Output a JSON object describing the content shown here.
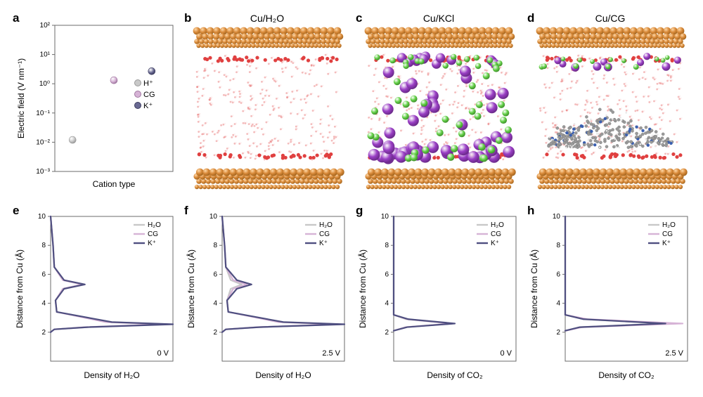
{
  "labels": {
    "a": "a",
    "b": "b",
    "c": "c",
    "d": "d",
    "e": "e",
    "f": "f",
    "g": "g",
    "h": "h"
  },
  "panel_a": {
    "type": "scatter",
    "xlabel": "Cation type",
    "ylabel": "Electric field (V nm⁻¹)",
    "ylim": [
      0.001,
      100
    ],
    "yticks": [
      "10⁻³",
      "10⁻²",
      "10⁻¹",
      "10⁰",
      "10¹",
      "10²"
    ],
    "yscale": "log",
    "plot_bg": "#ffffff",
    "axis_color": "#6b6b6b",
    "text_color": "#000000",
    "legend_fontsize": 11,
    "axis_fontsize": 12,
    "tick_fontsize": 10,
    "marker_radius": 5,
    "points": [
      {
        "name": "H⁺",
        "x": 0.15,
        "y_exp": -1.92,
        "color": "#c9c9c9",
        "stroke": "#9a9a9a",
        "err": 0
      },
      {
        "name": "CG",
        "x": 0.5,
        "y_exp": 0.12,
        "color": "#d6b3d6",
        "stroke": "#a077a0",
        "err": 0.02
      },
      {
        "name": "K⁺",
        "x": 0.82,
        "y_exp": 0.43,
        "color": "#6a6a93",
        "stroke": "#3d3d60",
        "err": 0
      }
    ]
  },
  "sim_panels": {
    "copper_color": "#d98a3a",
    "copper_edge": "#a6671f",
    "water_o": "#e04040",
    "water_h": "#ffffff",
    "water_alpha": 0.35,
    "bg": "#ffffff",
    "b": {
      "title": "Cu/H₂O",
      "extras": []
    },
    "c": {
      "title": "Cu/KCl",
      "extras": [
        {
          "kind": "K",
          "color": "#9a3fc5",
          "stroke": "#6b2a8a",
          "r": 8,
          "count_top": 14,
          "count_mid": 22,
          "count_bot": 26
        },
        {
          "kind": "Cl",
          "color": "#66d24a",
          "stroke": "#3f8f2b",
          "r": 5,
          "count_top": 16,
          "count_mid": 24,
          "count_bot": 10
        }
      ]
    },
    "d": {
      "title": "Cu/CG",
      "extras": [
        {
          "kind": "K",
          "color": "#9a3fc5",
          "stroke": "#6b2a8a",
          "r": 6,
          "count_top": 6,
          "count_mid": 4,
          "count_bot": 0
        },
        {
          "kind": "Cl",
          "color": "#66d24a",
          "stroke": "#3f8f2b",
          "r": 4,
          "count_top": 8,
          "count_mid": 5,
          "count_bot": 0
        }
      ],
      "polymer": {
        "c": "#9a9a9a",
        "n": "#3a5fb0",
        "h": "#e8e8e8"
      }
    }
  },
  "profiles_common": {
    "type": "line",
    "xlabel_h2o": "Density of H₂O",
    "xlabel_co2": "Density of CO₂",
    "ylabel": "Distance from Cu (Å)",
    "ylim": [
      0,
      10
    ],
    "yticks": [
      2,
      4,
      6,
      8,
      10
    ],
    "xlim": [
      0,
      1
    ],
    "axis_color": "#6b6b6b",
    "axis_fontsize": 12,
    "tick_fontsize": 10,
    "legend_fontsize": 10,
    "series_colors": {
      "H2O": {
        "label": "H₂O",
        "color": "#c8c8c8",
        "width": 2.2
      },
      "CG": {
        "label": "CG",
        "color": "#d6b3d6",
        "width": 2.2
      },
      "K": {
        "label": "K⁺",
        "color": "#4f4f80",
        "width": 2.2
      }
    }
  },
  "panel_e": {
    "corner": "0 V",
    "data_key": "h2o_0V"
  },
  "panel_f": {
    "corner": "2.5 V",
    "data_key": "h2o_25V"
  },
  "panel_g": {
    "corner": "0 V",
    "data_key": "co2_0V"
  },
  "panel_h": {
    "corner": "2.5 V",
    "data_key": "co2_25V"
  },
  "curves": {
    "h2o_0V": {
      "H2O": [
        [
          0,
          10
        ],
        [
          0.02,
          8
        ],
        [
          0.03,
          6.5
        ],
        [
          0.1,
          5.6
        ],
        [
          0.26,
          5.3
        ],
        [
          0.1,
          5.0
        ],
        [
          0.04,
          4.2
        ],
        [
          0.05,
          3.4
        ],
        [
          0.48,
          2.7
        ],
        [
          0.96,
          2.55
        ],
        [
          0.3,
          2.35
        ],
        [
          0.03,
          2.2
        ],
        [
          0,
          2.0
        ]
      ],
      "CG": [
        [
          0,
          10
        ],
        [
          0.02,
          8
        ],
        [
          0.03,
          6.5
        ],
        [
          0.1,
          5.6
        ],
        [
          0.26,
          5.3
        ],
        [
          0.1,
          5.0
        ],
        [
          0.04,
          4.2
        ],
        [
          0.05,
          3.4
        ],
        [
          0.45,
          2.7
        ],
        [
          0.93,
          2.55
        ],
        [
          0.28,
          2.35
        ],
        [
          0.03,
          2.2
        ],
        [
          0,
          2.0
        ]
      ],
      "K": [
        [
          0,
          10
        ],
        [
          0.02,
          8
        ],
        [
          0.03,
          6.5
        ],
        [
          0.11,
          5.6
        ],
        [
          0.28,
          5.3
        ],
        [
          0.11,
          5.0
        ],
        [
          0.04,
          4.2
        ],
        [
          0.05,
          3.4
        ],
        [
          0.5,
          2.7
        ],
        [
          1.0,
          2.55
        ],
        [
          0.3,
          2.35
        ],
        [
          0.03,
          2.2
        ],
        [
          0,
          2.0
        ]
      ]
    },
    "h2o_25V": {
      "H2O": [
        [
          0,
          10
        ],
        [
          0.02,
          8
        ],
        [
          0.03,
          6.5
        ],
        [
          0.07,
          5.6
        ],
        [
          0.16,
          5.3
        ],
        [
          0.07,
          5.0
        ],
        [
          0.04,
          4.2
        ],
        [
          0.05,
          3.4
        ],
        [
          0.48,
          2.7
        ],
        [
          0.96,
          2.55
        ],
        [
          0.3,
          2.35
        ],
        [
          0.03,
          2.2
        ],
        [
          0,
          2.0
        ]
      ],
      "CG": [
        [
          0,
          10
        ],
        [
          0.02,
          8
        ],
        [
          0.03,
          6.5
        ],
        [
          0.09,
          5.6
        ],
        [
          0.2,
          5.3
        ],
        [
          0.09,
          5.0
        ],
        [
          0.04,
          4.2
        ],
        [
          0.05,
          3.4
        ],
        [
          0.46,
          2.7
        ],
        [
          0.94,
          2.55
        ],
        [
          0.29,
          2.35
        ],
        [
          0.03,
          2.2
        ],
        [
          0,
          2.0
        ]
      ],
      "K": [
        [
          0,
          10
        ],
        [
          0.02,
          8
        ],
        [
          0.03,
          6.5
        ],
        [
          0.12,
          5.6
        ],
        [
          0.24,
          5.3
        ],
        [
          0.12,
          5.0
        ],
        [
          0.04,
          4.2
        ],
        [
          0.05,
          3.4
        ],
        [
          0.5,
          2.7
        ],
        [
          1.0,
          2.55
        ],
        [
          0.3,
          2.35
        ],
        [
          0.03,
          2.2
        ],
        [
          0,
          2.0
        ]
      ]
    },
    "co2_0V": {
      "H2O": [
        [
          0,
          10
        ],
        [
          0,
          3.2
        ],
        [
          0.1,
          2.9
        ],
        [
          0.48,
          2.6
        ],
        [
          0.1,
          2.35
        ],
        [
          0,
          2.1
        ]
      ],
      "CG": [
        [
          0,
          10
        ],
        [
          0,
          3.2
        ],
        [
          0.11,
          2.9
        ],
        [
          0.48,
          2.6
        ],
        [
          0.1,
          2.35
        ],
        [
          0,
          2.1
        ]
      ],
      "K": [
        [
          0,
          10
        ],
        [
          0,
          3.2
        ],
        [
          0.12,
          2.9
        ],
        [
          0.5,
          2.6
        ],
        [
          0.11,
          2.35
        ],
        [
          0,
          2.1
        ]
      ]
    },
    "co2_25V": {
      "H2O": [
        [
          0,
          10
        ],
        [
          0,
          3.2
        ],
        [
          0.15,
          2.9
        ],
        [
          0.8,
          2.6
        ],
        [
          0.12,
          2.35
        ],
        [
          0,
          2.1
        ]
      ],
      "CG": [
        [
          0,
          10
        ],
        [
          0,
          3.2
        ],
        [
          0.18,
          2.9
        ],
        [
          0.96,
          2.6
        ],
        [
          0.14,
          2.35
        ],
        [
          0,
          2.1
        ]
      ],
      "K": [
        [
          0,
          10
        ],
        [
          0,
          3.2
        ],
        [
          0.15,
          2.9
        ],
        [
          0.82,
          2.6
        ],
        [
          0.12,
          2.35
        ],
        [
          0,
          2.1
        ]
      ]
    }
  }
}
